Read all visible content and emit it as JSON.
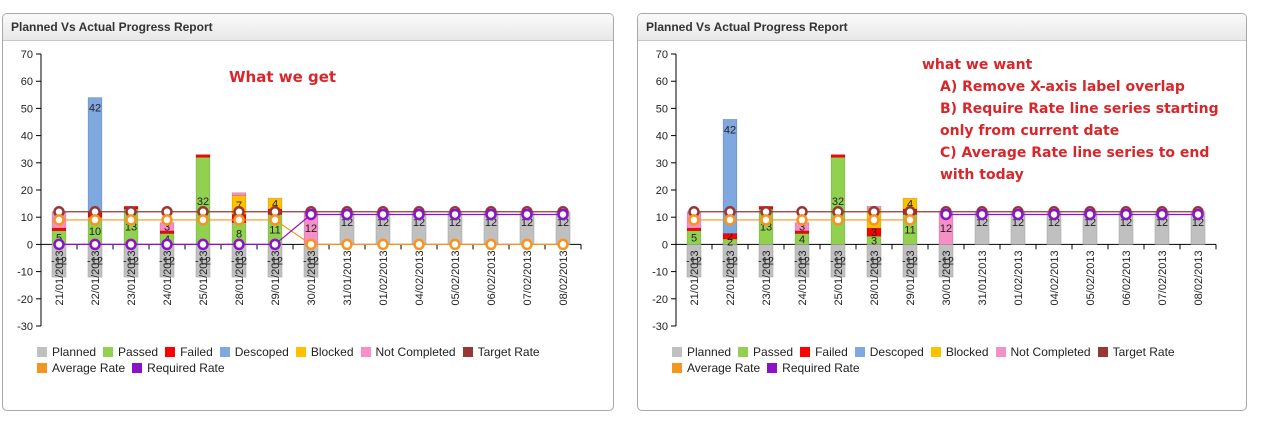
{
  "panels": [
    {
      "title": "Planned Vs Actual Progress Report",
      "annotation": {
        "lines": [
          "What we get"
        ]
      }
    },
    {
      "title": "Planned Vs Actual Progress Report",
      "annotation": {
        "lines": [
          "what we want",
          "A) Remove X-axis label overlap",
          "B)  Require Rate line series starting",
          "only from current date",
          "C) Average Rate line series to end",
          "with today"
        ]
      }
    }
  ],
  "colors": {
    "Planned": "#c0c0c0",
    "Passed": "#92d050",
    "Failed": "#ff0000",
    "Descoped": "#7fa7e0",
    "Blocked": "#ffc000",
    "Not Completed": "#f68fc6",
    "Target Rate": "#953735",
    "Average Rate": "#f79420",
    "Required Rate": "#8b12c9",
    "annotation": "#d9262b"
  },
  "chart_data": [
    {
      "type": "bar",
      "title": "Planned Vs Actual Progress Report",
      "xlabel": "",
      "ylabel": "",
      "ylim": [
        -30,
        70
      ],
      "yticks": [
        -30,
        -20,
        -10,
        0,
        10,
        20,
        30,
        40,
        50,
        60,
        70
      ],
      "categories": [
        "21/01/2013",
        "22/01/2013",
        "23/01/2013",
        "24/01/2013",
        "25/01/2013",
        "28/01/2013",
        "29/01/2013",
        "30/01/2013",
        "31/01/2013",
        "01/02/2013",
        "04/02/2013",
        "05/02/2013",
        "06/02/2013",
        "07/02/2013",
        "08/02/2013"
      ],
      "x_label_overlap": true,
      "series": [
        {
          "name": "Planned",
          "kind": "bar",
          "values": [
            -12,
            -12,
            -12,
            -12,
            -12,
            -12,
            -12,
            -12,
            12,
            12,
            12,
            12,
            12,
            12,
            12
          ]
        },
        {
          "name": "Passed",
          "kind": "bar",
          "values": [
            5,
            10,
            13,
            4,
            32,
            8,
            11,
            0,
            0,
            0,
            0,
            0,
            0,
            0,
            0
          ]
        },
        {
          "name": "Failed",
          "kind": "bar",
          "values": [
            1,
            2,
            1,
            1,
            1,
            3,
            2,
            0,
            0,
            0,
            0,
            0,
            0,
            0,
            0
          ]
        },
        {
          "name": "Descoped",
          "kind": "bar",
          "values": [
            0,
            42,
            0,
            0,
            0,
            0,
            0,
            0,
            0,
            0,
            0,
            0,
            0,
            0,
            0
          ]
        },
        {
          "name": "Blocked",
          "kind": "bar",
          "values": [
            0,
            0,
            0,
            0,
            0,
            7,
            4,
            0,
            0,
            0,
            0,
            0,
            0,
            0,
            0
          ]
        },
        {
          "name": "Not Completed",
          "kind": "bar",
          "values": [
            6,
            0,
            0,
            3,
            0,
            1,
            0,
            12,
            0,
            0,
            0,
            0,
            0,
            0,
            0
          ]
        },
        {
          "name": "Target Rate",
          "kind": "line",
          "values": [
            12,
            12,
            12,
            12,
            12,
            12,
            12,
            12,
            12,
            12,
            12,
            12,
            12,
            12,
            12
          ]
        },
        {
          "name": "Average Rate",
          "kind": "line",
          "values": [
            9,
            9,
            9,
            9,
            9,
            9,
            9,
            0,
            0,
            0,
            0,
            0,
            0,
            0,
            0
          ]
        },
        {
          "name": "Required Rate",
          "kind": "line",
          "values": [
            0,
            0,
            0,
            0,
            0,
            0,
            0,
            11,
            11,
            11,
            11,
            11,
            11,
            11,
            11
          ]
        }
      ],
      "legend": [
        "Planned",
        "Passed",
        "Failed",
        "Descoped",
        "Blocked",
        "Not Completed",
        "Target Rate",
        "Average Rate",
        "Required Rate"
      ],
      "legend_position": "bottom-left"
    },
    {
      "type": "bar",
      "title": "Planned Vs Actual Progress Report",
      "xlabel": "",
      "ylabel": "",
      "ylim": [
        -30,
        70
      ],
      "yticks": [
        -30,
        -20,
        -10,
        0,
        10,
        20,
        30,
        40,
        50,
        60,
        70
      ],
      "categories": [
        "21/01/2013",
        "22/01/2013",
        "23/01/2013",
        "24/01/2013",
        "25/01/2013",
        "28/01/2013",
        "29/01/2013",
        "30/01/2013",
        "31/01/2013",
        "01/02/2013",
        "04/02/2013",
        "05/02/2013",
        "06/02/2013",
        "07/02/2013",
        "08/02/2013"
      ],
      "x_label_overlap": true,
      "series": [
        {
          "name": "Planned",
          "kind": "bar",
          "values": [
            -12,
            -12,
            -12,
            -12,
            -12,
            -12,
            -12,
            -12,
            12,
            12,
            12,
            12,
            12,
            12,
            12
          ]
        },
        {
          "name": "Passed",
          "kind": "bar",
          "values": [
            5,
            2,
            13,
            4,
            32,
            3,
            11,
            0,
            0,
            0,
            0,
            0,
            0,
            0,
            0
          ]
        },
        {
          "name": "Failed",
          "kind": "bar",
          "values": [
            1,
            2,
            1,
            1,
            1,
            3,
            2,
            0,
            0,
            0,
            0,
            0,
            0,
            0,
            0
          ]
        },
        {
          "name": "Descoped",
          "kind": "bar",
          "values": [
            0,
            42,
            0,
            0,
            0,
            0,
            0,
            0,
            0,
            0,
            0,
            0,
            0,
            0,
            0
          ]
        },
        {
          "name": "Blocked",
          "kind": "bar",
          "values": [
            0,
            0,
            0,
            0,
            0,
            7,
            4,
            0,
            0,
            0,
            0,
            0,
            0,
            0,
            0
          ]
        },
        {
          "name": "Not Completed",
          "kind": "bar",
          "values": [
            6,
            0,
            0,
            3,
            0,
            1,
            0,
            12,
            0,
            0,
            0,
            0,
            0,
            0,
            0
          ]
        },
        {
          "name": "Target Rate",
          "kind": "line",
          "values": [
            12,
            12,
            12,
            12,
            12,
            12,
            12,
            12,
            12,
            12,
            12,
            12,
            12,
            12,
            12
          ]
        },
        {
          "name": "Average Rate",
          "kind": "line",
          "values": [
            9,
            9,
            9,
            9,
            9,
            9,
            9,
            null,
            null,
            null,
            null,
            null,
            null,
            null,
            null
          ]
        },
        {
          "name": "Required Rate",
          "kind": "line",
          "values": [
            null,
            null,
            null,
            null,
            null,
            null,
            null,
            11,
            11,
            11,
            11,
            11,
            11,
            11,
            11
          ]
        }
      ],
      "legend": [
        "Planned",
        "Passed",
        "Failed",
        "Descoped",
        "Blocked",
        "Not Completed",
        "Target Rate",
        "Average Rate",
        "Required Rate"
      ],
      "legend_position": "bottom-left"
    }
  ]
}
